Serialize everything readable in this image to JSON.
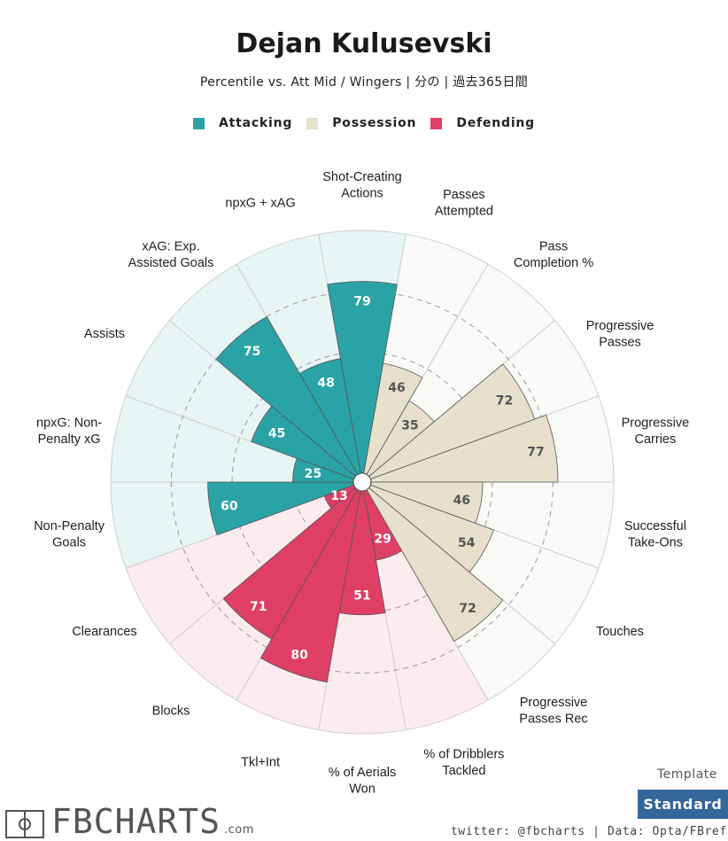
{
  "header": {
    "title": "Dejan Kulusevski",
    "subtitle": "Percentile vs. Att Mid / Wingers | 分の | 過去365日間"
  },
  "legend": [
    {
      "label": "Attacking",
      "color": "#2aa3a6"
    },
    {
      "label": "Possession",
      "color": "#e6e0cc"
    },
    {
      "label": "Defending",
      "color": "#df3f65"
    }
  ],
  "chart_data": {
    "type": "polar-bar",
    "scale": [
      0,
      100
    ],
    "gridlines": [
      25,
      50,
      75
    ],
    "categories": [
      {
        "label": "Shot-Creating\nActions",
        "group": "Attacking",
        "value": 79
      },
      {
        "label": "Passes\nAttempted",
        "group": "Possession",
        "value": 46
      },
      {
        "label": "Pass\nCompletion %",
        "group": "Possession",
        "value": 35
      },
      {
        "label": "Progressive\nPasses",
        "group": "Possession",
        "value": 72
      },
      {
        "label": "Progressive\nCarries",
        "group": "Possession",
        "value": 77
      },
      {
        "label": "Successful\nTake-Ons",
        "group": "Possession",
        "value": 46
      },
      {
        "label": "Touches",
        "group": "Possession",
        "value": 54
      },
      {
        "label": "Progressive\nPasses Rec",
        "group": "Possession",
        "value": 72
      },
      {
        "label": "% of Dribblers\nTackled",
        "group": "Defending",
        "value": 29
      },
      {
        "label": "% of Aerials\nWon",
        "group": "Defending",
        "value": 51
      },
      {
        "label": "Tkl+Int",
        "group": "Defending",
        "value": 80
      },
      {
        "label": "Blocks",
        "group": "Defending",
        "value": 71
      },
      {
        "label": "Clearances",
        "group": "Defending",
        "value": 13
      },
      {
        "label": "Non-Penalty\nGoals",
        "group": "Attacking",
        "value": 60
      },
      {
        "label": "npxG: Non-\nPenalty xG",
        "group": "Attacking",
        "value": 25
      },
      {
        "label": "Assists",
        "group": "Attacking",
        "value": 45
      },
      {
        "label": "xAG: Exp.\nAssisted Goals",
        "group": "Attacking",
        "value": 75
      },
      {
        "label": "npxG + xAG",
        "group": "Attacking",
        "value": 48
      }
    ]
  },
  "footer": {
    "template_label": "Template",
    "template_button": "Standard",
    "credits": "twitter: @fbcharts | Data: Opta/FBref",
    "logo_text": "FBCHARTS",
    "logo_suffix": ".com"
  },
  "colors": {
    "Attacking": {
      "fill": "#2aa3a6",
      "bg": "#e8f5f5",
      "text": "#ffffff"
    },
    "Possession": {
      "fill": "#e6e0cc",
      "bg": "#fafaf8",
      "text": "#555555"
    },
    "Defending": {
      "fill": "#df3f65",
      "bg": "#fcebef",
      "text": "#ffffff"
    }
  }
}
